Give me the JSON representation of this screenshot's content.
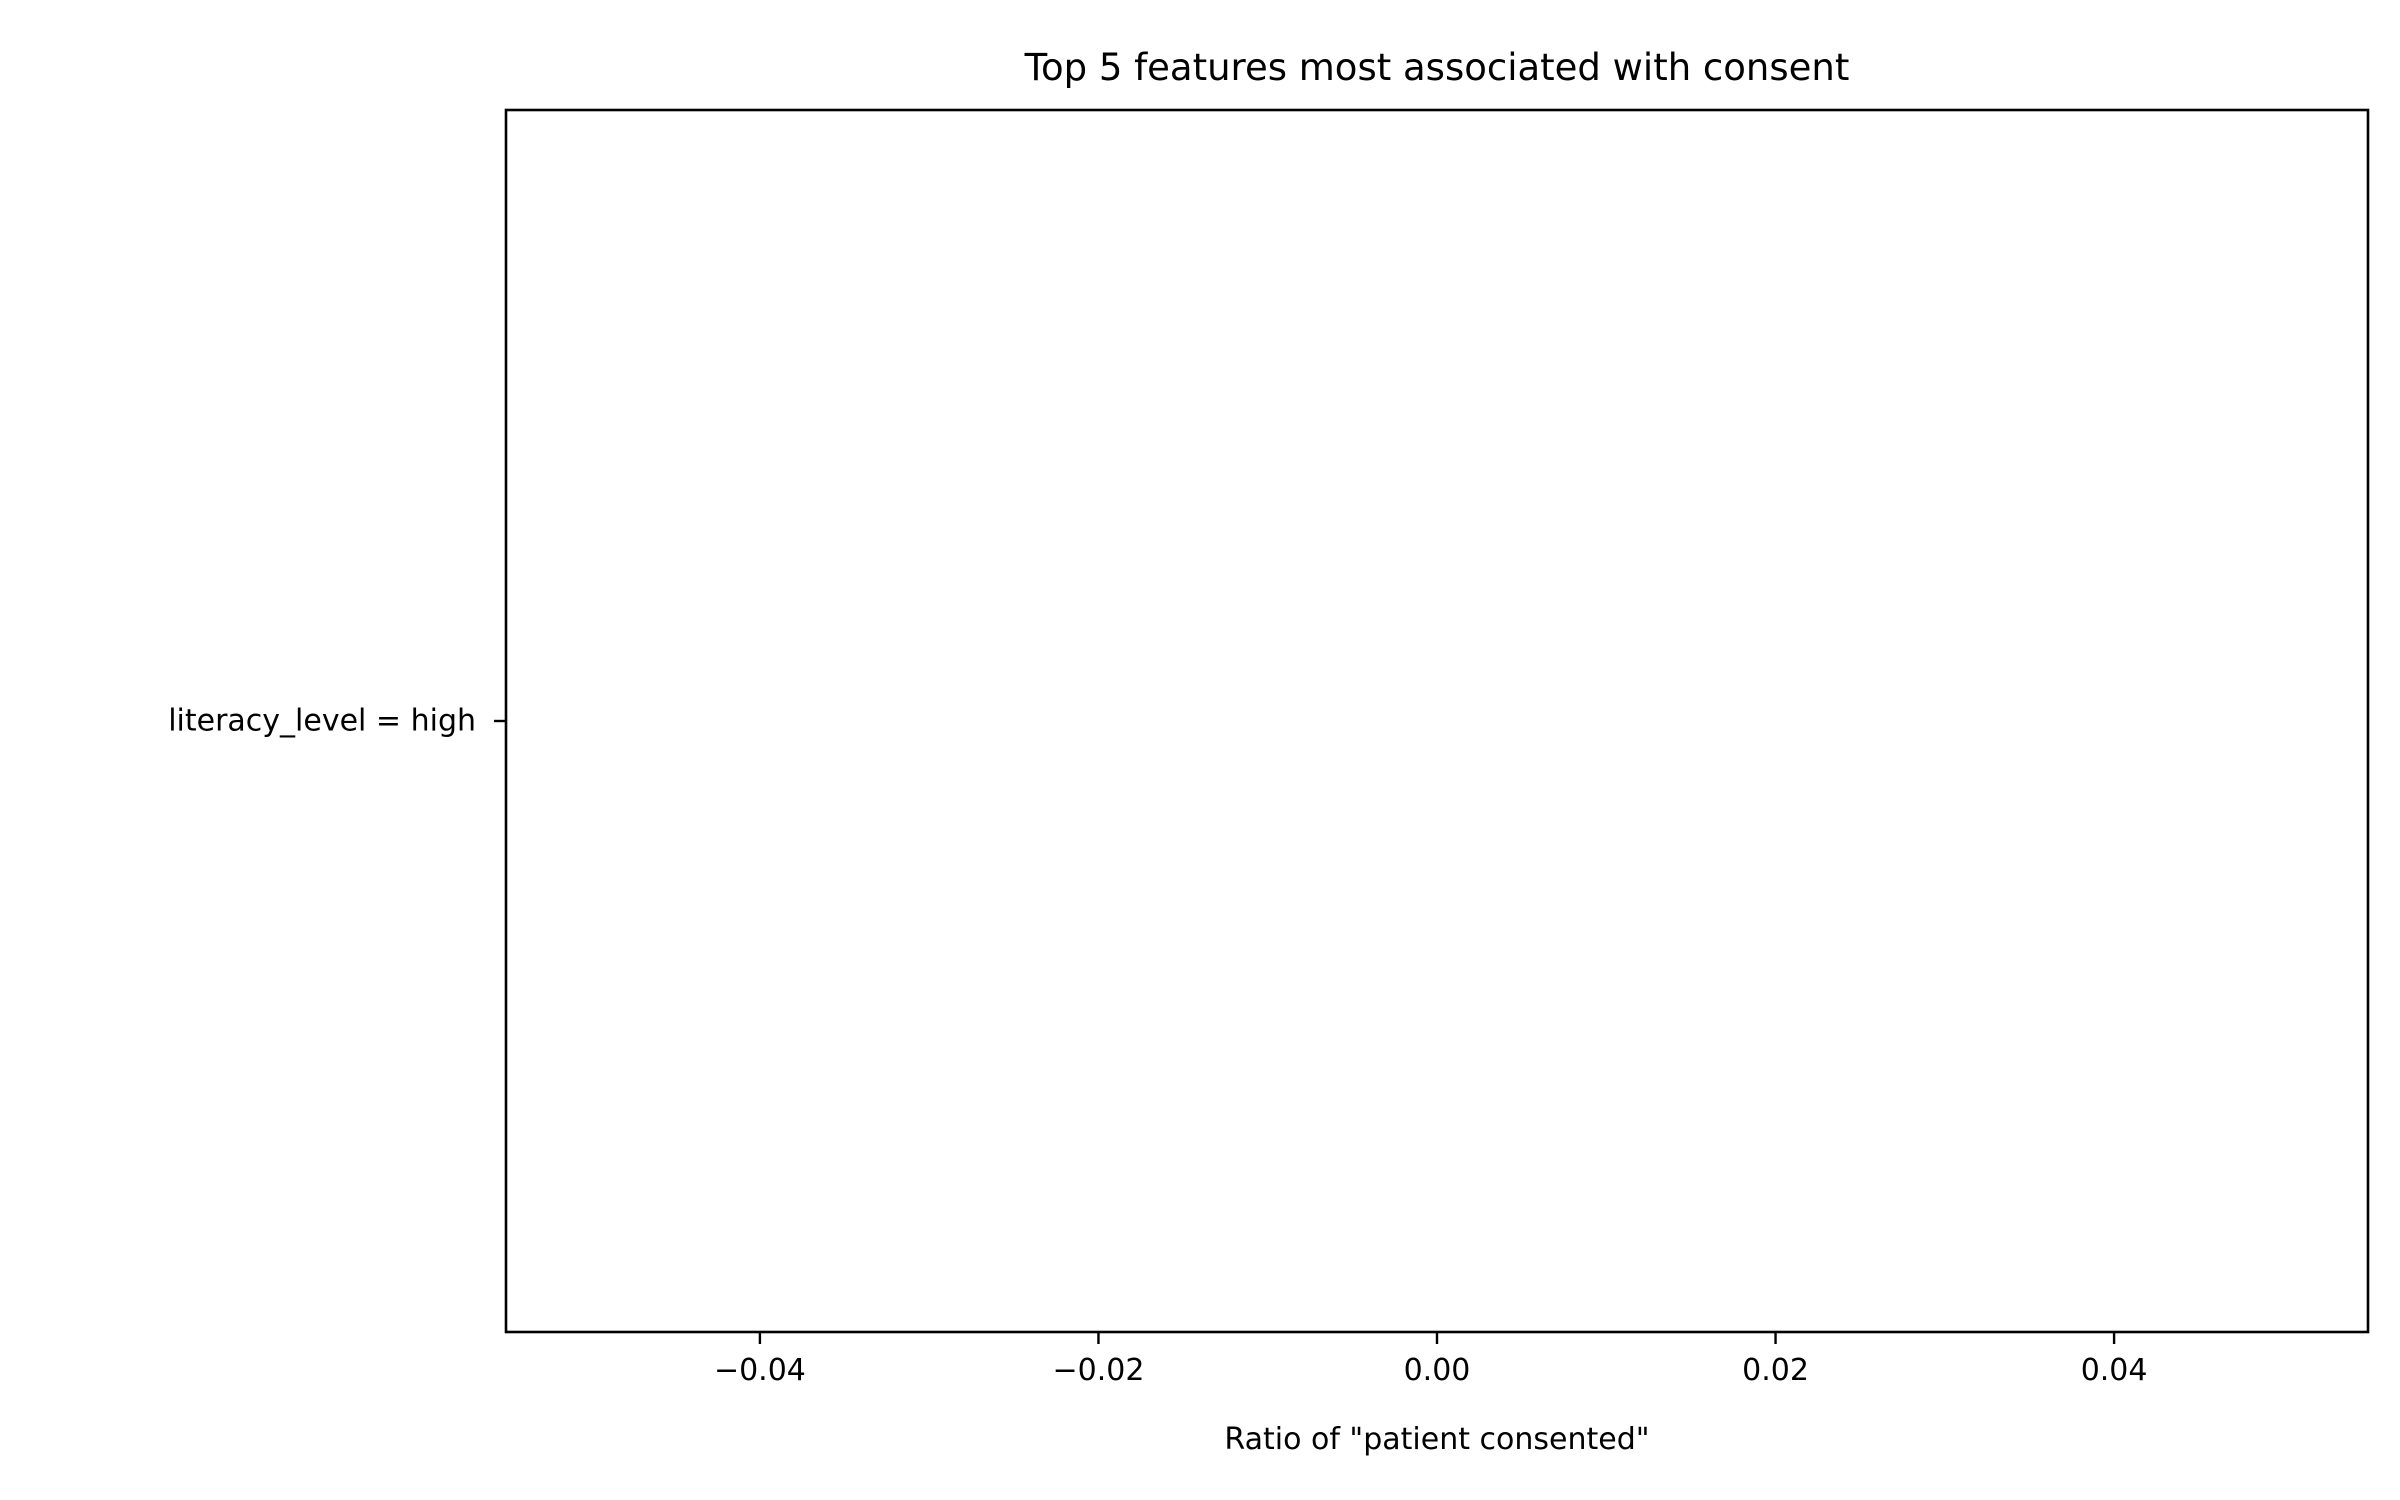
{
  "chart_data": {
    "type": "bar",
    "orientation": "horizontal",
    "title": "Top 5 features most associated with consent",
    "xlabel": "Ratio of \"patient consented\"",
    "ylabel": "",
    "categories": [
      "literacy_level = high"
    ],
    "values": [
      0
    ],
    "xlim": [
      -0.055,
      0.055
    ],
    "xticks": [
      -0.04,
      -0.02,
      0.0,
      0.02,
      0.04
    ],
    "xtick_labels": [
      "−0.04",
      "−0.02",
      "0.00",
      "0.02",
      "0.04"
    ],
    "grid": false,
    "legend": "none"
  }
}
